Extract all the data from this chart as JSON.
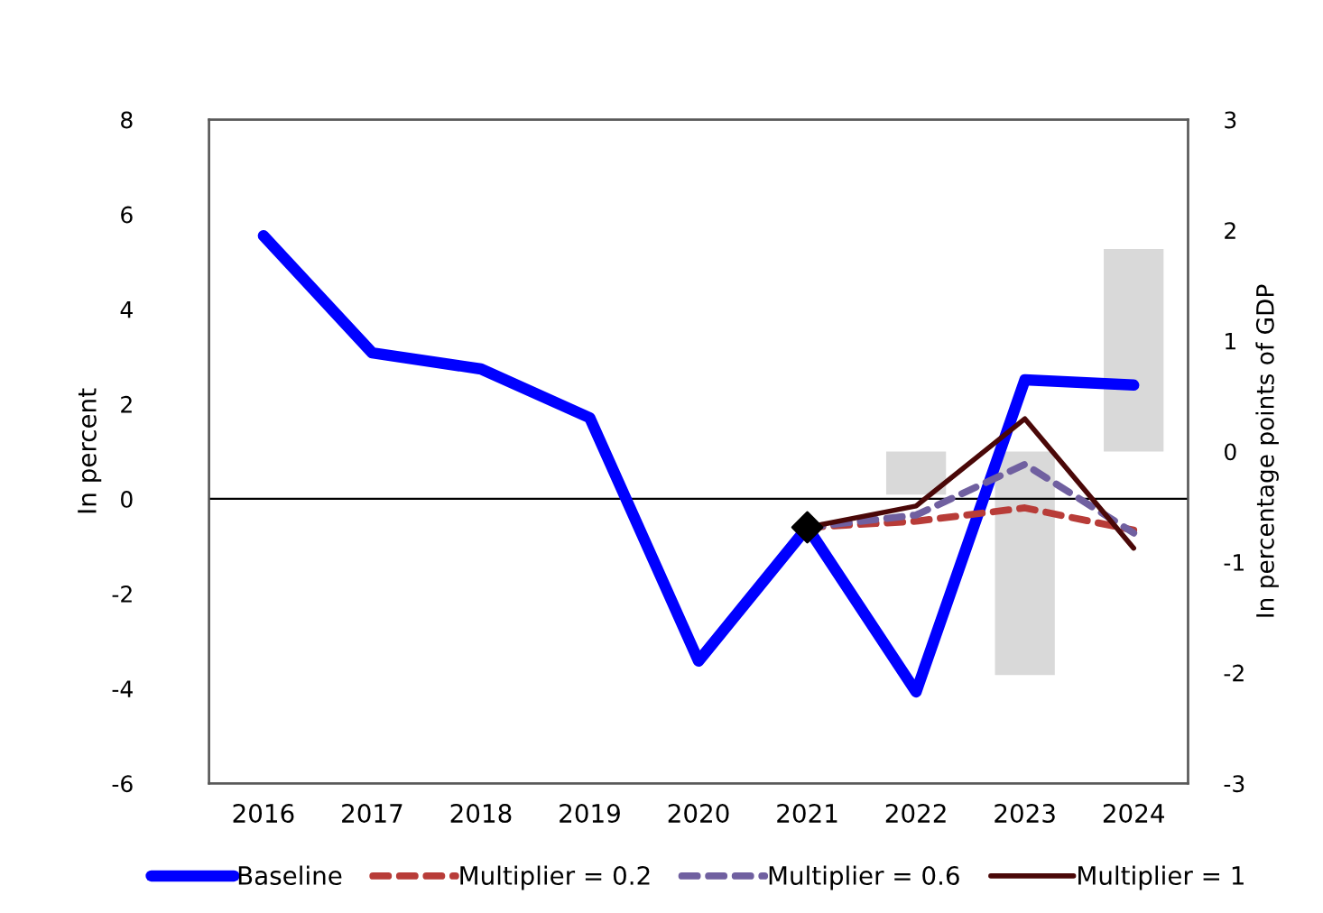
{
  "chart_data": {
    "type": "line",
    "categories": [
      "2016",
      "2017",
      "2018",
      "2019",
      "2020",
      "2021",
      "2022",
      "2023",
      "2024"
    ],
    "ylabel": "In percent",
    "y2label": "In percentage points of GDP",
    "ylim": [
      -6,
      8
    ],
    "yticks": [
      -6,
      -4,
      -2,
      0,
      2,
      4,
      6,
      8
    ],
    "y2lim": [
      -3,
      3
    ],
    "y2ticks": [
      -3,
      -2,
      -1,
      0,
      1,
      2,
      3
    ],
    "ref_lines": [
      {
        "axis": "y",
        "value": 0,
        "color": "#000000"
      }
    ],
    "legend": "bottom",
    "grid": false,
    "marker": "none",
    "series": [
      {
        "type": "bar",
        "axis": "y2",
        "color": "#d9d9d9",
        "values": [
          null,
          null,
          null,
          null,
          null,
          null,
          -0.39,
          -2.02,
          1.83
        ]
      },
      {
        "name": "Baseline",
        "color": "#0000ff",
        "line_style": "solid",
        "values": [
          5.55,
          3.08,
          2.74,
          1.71,
          -3.42,
          -0.6,
          -4.07,
          2.51,
          2.4
        ]
      },
      {
        "name": "Multiplier = 0.2",
        "color": "#b83c38",
        "line_style": "dashed",
        "values": [
          null,
          null,
          null,
          null,
          null,
          -0.6,
          -0.47,
          -0.19,
          -0.66
        ]
      },
      {
        "name": "Multiplier = 0.6",
        "color": "#7060a0",
        "line_style": "dashed",
        "values": [
          null,
          null,
          null,
          null,
          null,
          -0.6,
          -0.34,
          0.73,
          -0.72
        ]
      },
      {
        "name": "Multiplier = 1",
        "color": "#4a0808",
        "line_style": "solid",
        "values": [
          null,
          null,
          null,
          null,
          null,
          -0.6,
          -0.15,
          1.69,
          -1.04
        ]
      },
      {
        "type": "scatter",
        "marker": "diamond",
        "color": "#000000",
        "values": [
          null,
          null,
          null,
          null,
          null,
          -0.6,
          null,
          null,
          null
        ]
      }
    ]
  }
}
